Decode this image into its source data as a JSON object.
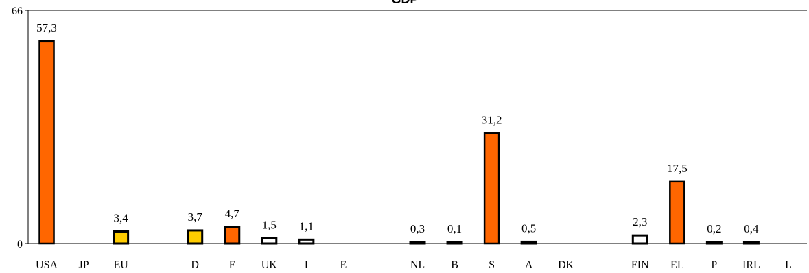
{
  "chart_data": {
    "type": "bar",
    "title": "GDP",
    "xlabel": "",
    "ylabel": "",
    "ylim": [
      0,
      66
    ],
    "yticks": [
      "0",
      "66"
    ],
    "grid": false,
    "categories": [
      "USA",
      "JP",
      "EU",
      "",
      "D",
      "F",
      "UK",
      "I",
      "E",
      "",
      "NL",
      "B",
      "S",
      "A",
      "DK",
      "",
      "FIN",
      "EL",
      "P",
      "IRL",
      "L"
    ],
    "values": [
      57.3,
      null,
      3.4,
      null,
      3.7,
      4.7,
      1.5,
      1.1,
      null,
      null,
      0.3,
      0.1,
      31.2,
      0.5,
      null,
      null,
      2.3,
      17.5,
      0.2,
      0.4,
      null
    ],
    "value_labels": [
      "57,3",
      "",
      "3,4",
      "",
      "3,7",
      "4,7",
      "1,5",
      "1,1",
      "",
      "",
      "0,3",
      "0,1",
      "31,2",
      "0,5",
      "",
      "",
      "2,3",
      "17,5",
      "0,2",
      "0,4",
      ""
    ],
    "bar_colors": [
      "#FF6600",
      null,
      "#FFCC00",
      null,
      "#FFCC00",
      "#FF6600",
      "#FFFFFF",
      "#FFFFFF",
      null,
      null,
      "#FFFFFF",
      "#FFFFFF",
      "#FF6600",
      "#FFFFFF",
      null,
      null,
      "#FFFFFF",
      "#FF6600",
      "#FFFFFF",
      "#FFFFFF",
      null
    ],
    "bar_borders": [
      "#000000",
      null,
      "#000000",
      null,
      "#000000",
      "#000000",
      "#000000",
      "#000000",
      null,
      null,
      "#000000",
      "#000000",
      "#000000",
      "#000000",
      null,
      null,
      "#000000",
      "#000000",
      "#000000",
      "#000000",
      null
    ]
  }
}
